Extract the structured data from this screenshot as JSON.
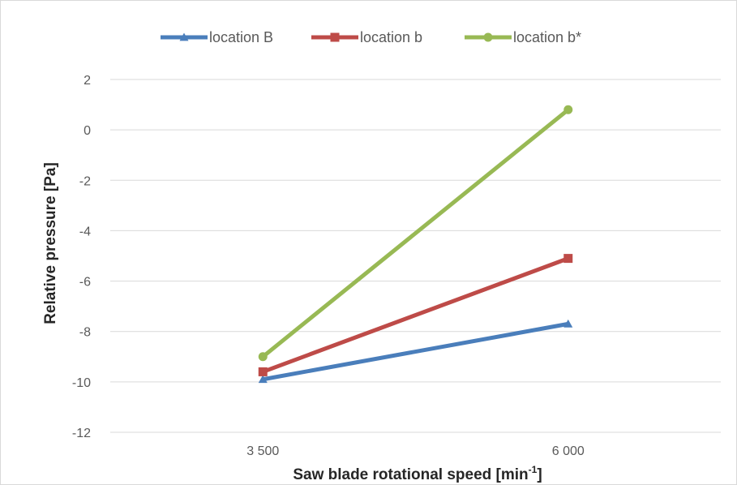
{
  "chart_data": {
    "type": "line",
    "title": "",
    "categories": [
      "3 500",
      "6 000"
    ],
    "x": [
      3500,
      6000
    ],
    "xlabel": "Saw blade rotational speed [min",
    "xlabel_sup": "-1",
    "xlabel_suffix": "]",
    "ylabel": "Relative pressure [Pa]",
    "ylim": [
      -12,
      2
    ],
    "yticks": [
      2,
      0,
      -2,
      -4,
      -6,
      -8,
      -10,
      -12
    ],
    "grid": true,
    "legend_position": "top",
    "series": [
      {
        "name": "location B",
        "values": [
          -9.9,
          -7.7
        ],
        "color": "#4a7ebb",
        "marker": "triangle"
      },
      {
        "name": "location b",
        "values": [
          -9.6,
          -5.1
        ],
        "color": "#be4b48",
        "marker": "square"
      },
      {
        "name": "location b*",
        "values": [
          -9.0,
          0.8
        ],
        "color": "#98b954",
        "marker": "circle"
      }
    ]
  }
}
